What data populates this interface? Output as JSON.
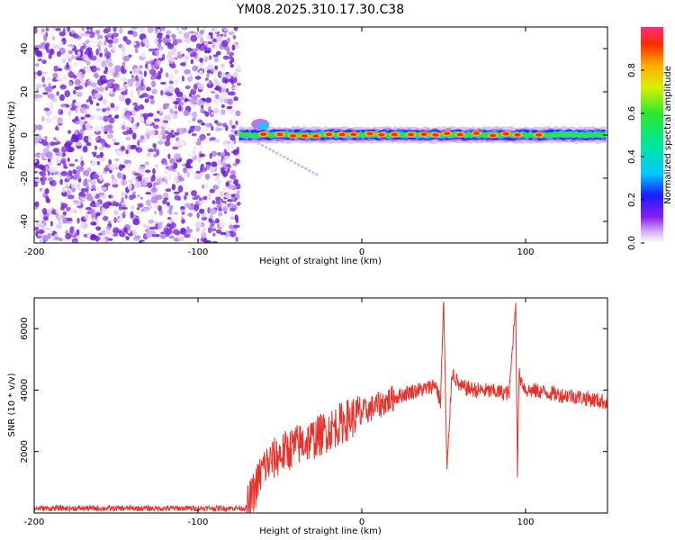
{
  "figure_title": "YM08.2025.310.17.30.C38",
  "chart_data": [
    {
      "type": "heatmap",
      "title": "YM08.2025.310.17.30.C38",
      "xlabel": "Height of straight line (km)",
      "ylabel": "Frequency (Hz)",
      "xlim": [
        -200,
        150
      ],
      "ylim": [
        -50,
        50
      ],
      "x_ticks": [
        "-200",
        "-100",
        "0",
        "100"
      ],
      "x_tick_values": [
        -200,
        -100,
        0,
        100
      ],
      "y_ticks": [
        "40",
        "20",
        "0",
        "-20",
        "-40"
      ],
      "y_tick_values": [
        40,
        20,
        0,
        -20,
        -40
      ],
      "noise_region_x": [
        -200,
        -75
      ],
      "signal_band": {
        "x_start": -75,
        "x_end": 150,
        "center_freq_hz": 0,
        "hot_spots_x": [
          -60,
          -50,
          -42,
          -35,
          -28,
          -20,
          -12,
          -5,
          5,
          12,
          20,
          30,
          38,
          45,
          52,
          60,
          70,
          80,
          88,
          95,
          108
        ]
      },
      "colorbar": {
        "label": "Normalized spectral amplitude",
        "range": [
          0,
          1
        ],
        "ticks": [
          "0.0",
          "0.2",
          "0.4",
          "0.6",
          "0.8"
        ],
        "tick_values": [
          0.0,
          0.2,
          0.4,
          0.6,
          0.8
        ]
      }
    },
    {
      "type": "line",
      "xlabel": "Height of straight line (km)",
      "ylabel": "SNR (10 * v/v)",
      "xlim": [
        -200,
        150
      ],
      "ylim": [
        0,
        7000
      ],
      "x_ticks": [
        "-200",
        "-100",
        "0",
        "100"
      ],
      "x_tick_values": [
        -200,
        -100,
        0,
        100
      ],
      "y_ticks": [
        "2000",
        "4000",
        "6000"
      ],
      "y_tick_values": [
        2000,
        4000,
        6000
      ],
      "series": [
        {
          "name": "SNR",
          "color": "#e8312a",
          "x": [
            -200,
            -150,
            -100,
            -70,
            -65,
            -60,
            -50,
            -40,
            -30,
            -20,
            -10,
            0,
            10,
            20,
            30,
            40,
            45,
            48,
            50,
            52,
            55,
            60,
            70,
            80,
            90,
            94,
            95,
            96,
            100,
            110,
            120,
            130,
            140,
            150
          ],
          "values": [
            150,
            150,
            150,
            160,
            800,
            1500,
            1900,
            2200,
            2400,
            2700,
            3000,
            3250,
            3500,
            3750,
            3950,
            4050,
            4200,
            3600,
            6900,
            1300,
            4600,
            4100,
            4000,
            3950,
            3900,
            6900,
            1300,
            4500,
            4000,
            3950,
            3850,
            3800,
            3700,
            3600
          ]
        }
      ]
    }
  ],
  "colors": {
    "line": "#e8312a",
    "noise": "#7a2cd8",
    "axes": "#000000"
  }
}
